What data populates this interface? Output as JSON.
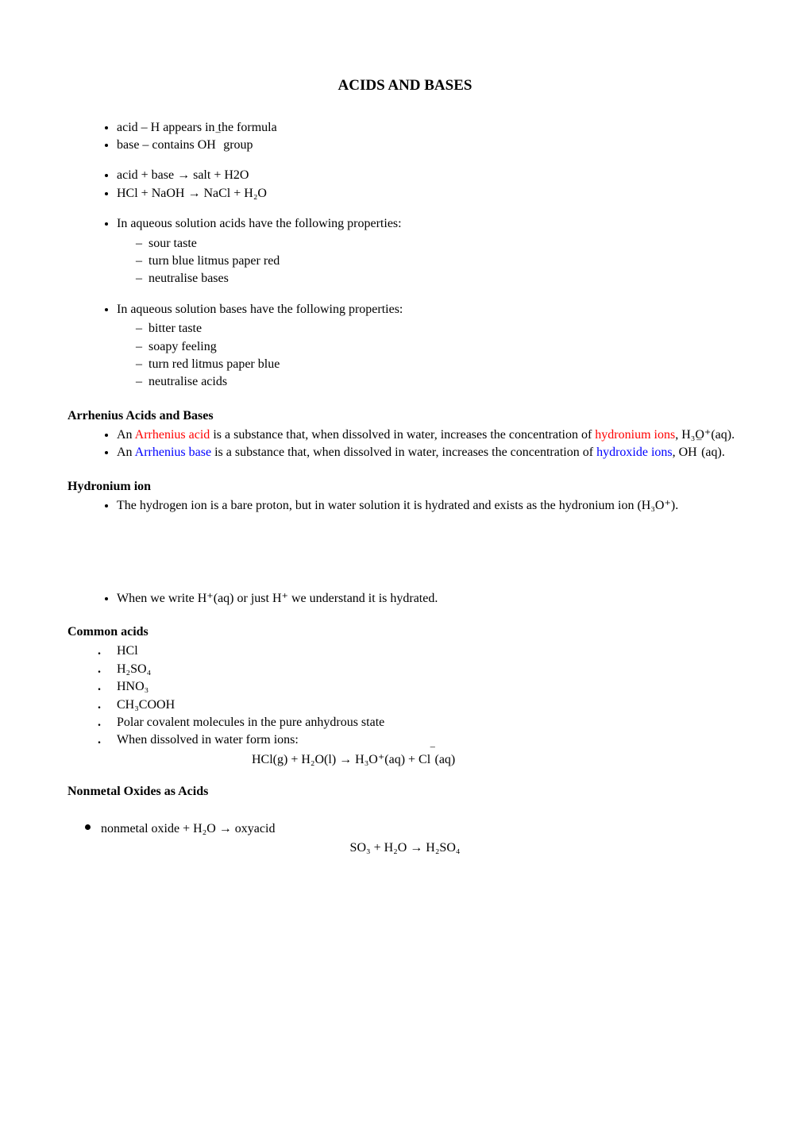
{
  "title": "ACIDS AND BASES",
  "intro": {
    "b1": "acid – H appears in the formula",
    "b2_pre": "base – contains OH",
    "b2_post": " group",
    "b3": "acid + base  →  salt + H2O",
    "b4": "HCl + NaOH  →  NaCl + H₂O"
  },
  "acids_prop": {
    "lead": "In aqueous solution acids have the following properties:",
    "s1": "sour taste",
    "s2": "turn blue litmus paper red",
    "s3": "neutralise bases"
  },
  "bases_prop": {
    "lead": "In aqueous solution bases have the following properties:",
    "s1": "bitter taste",
    "s2": "soapy feeling",
    "s3": "turn red litmus paper blue",
    "s4": "neutralise acids"
  },
  "arrhenius": {
    "heading": "Arrhenius Acids and Bases",
    "a_pre": "An ",
    "a_red": "Arrhenius acid",
    "a_mid": " is a substance that, when dissolved in water, increases the concentration of ",
    "a_red2": "hydronium ions",
    "a_post": ", H₃O⁺(aq).",
    "b_pre": "An ",
    "b_blue": "Arrhenius base",
    "b_mid": " is a substance that, when dissolved in water, increases the concentration of ",
    "b_blue2": "hydroxide ions",
    "b_post_pre": ", OH",
    "b_post_suf": "(aq)."
  },
  "hydronium": {
    "heading": "Hydronium ion",
    "b1": "The hydrogen ion is a bare proton, but in water solution it is hydrated and exists as the hydronium ion (H₃O⁺).",
    "b2": "When we write H⁺(aq) or just H⁺ we understand it is hydrated."
  },
  "common": {
    "heading": "Common acids",
    "c1": "HCl",
    "c2": "H₂SO₄",
    "c3": "HNO₃",
    "c4": "CH₃COOH",
    "c5": "Polar covalent molecules in the pure anhydrous state",
    "c6": "When dissolved in water form ions:",
    "eq_pre": "HCl(g) + H₂O(l)  →  H₃O⁺(aq) + Cl",
    "eq_post": "(aq)"
  },
  "nonmetal": {
    "heading": "Nonmetal Oxides as Acids",
    "b1": "nonmetal oxide + H₂O  →  oxyacid",
    "eq": "SO₃ + H₂O  →  H₂SO₄"
  },
  "colors": {
    "red": "#ff0000",
    "blue": "#0000ff",
    "text": "#000000",
    "bg": "#ffffff"
  },
  "typography": {
    "body_font": "Times New Roman",
    "body_size_pt": 12,
    "title_size_pt": 14,
    "title_weight": "bold"
  }
}
